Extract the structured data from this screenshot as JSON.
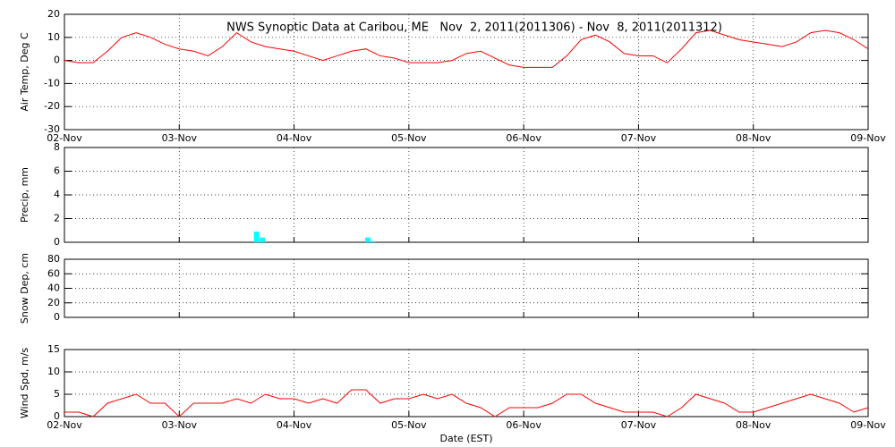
{
  "chart_data": [
    {
      "type": "line",
      "title": "NWS Synoptic Data at Caribou, ME   Nov  2, 2011(2011306) - Nov  8, 2011(2011312)",
      "ylabel": "Air Temp, Deg C",
      "x": [
        0,
        0.125,
        0.25,
        0.375,
        0.5,
        0.625,
        0.75,
        0.875,
        1,
        1.125,
        1.25,
        1.375,
        1.5,
        1.625,
        1.75,
        1.875,
        2,
        2.125,
        2.25,
        2.375,
        2.5,
        2.625,
        2.75,
        2.875,
        3,
        3.125,
        3.25,
        3.375,
        3.5,
        3.625,
        3.75,
        3.875,
        4,
        4.125,
        4.25,
        4.375,
        4.5,
        4.625,
        4.75,
        4.875,
        5,
        5.125,
        5.25,
        5.375,
        5.5,
        5.625,
        5.75,
        5.875,
        6,
        6.125,
        6.25,
        6.375,
        6.5,
        6.625,
        6.75,
        6.875,
        7
      ],
      "series": [
        {
          "color": "#ff0000",
          "values": [
            0,
            -1,
            -1,
            4,
            10,
            12,
            10,
            7,
            5,
            4,
            2,
            6,
            12,
            8,
            6,
            5,
            4,
            2,
            0,
            2,
            4,
            5,
            2,
            1,
            -1,
            -1,
            -1,
            0,
            3,
            4,
            1,
            -2,
            -3,
            -3,
            -3,
            2,
            9,
            11,
            8,
            3,
            2,
            2,
            -1,
            5,
            12,
            13,
            11,
            9,
            8,
            7,
            6,
            8,
            12,
            13,
            12,
            9,
            5
          ]
        }
      ],
      "xlim": [
        0,
        7
      ],
      "xticks": [
        {
          "value": 0,
          "label": "02-Nov"
        },
        {
          "value": 1,
          "label": "03-Nov"
        },
        {
          "value": 2,
          "label": "04-Nov"
        },
        {
          "value": 3,
          "label": "05-Nov"
        },
        {
          "value": 4,
          "label": "06-Nov"
        },
        {
          "value": 5,
          "label": "07-Nov"
        },
        {
          "value": 6,
          "label": "08-Nov"
        },
        {
          "value": 7,
          "label": "09-Nov"
        }
      ],
      "ylim": [
        -30,
        20
      ],
      "yticks": [
        -30,
        -20,
        -10,
        0,
        10,
        20
      ],
      "grid": true
    },
    {
      "type": "bar",
      "ylabel": "Precip, mm",
      "x": [
        1.65,
        1.7,
        2.62,
        2.66
      ],
      "series": [
        {
          "color": "#00ffff",
          "values": [
            0.9,
            0.4,
            0.4,
            0.1
          ]
        }
      ],
      "xlim": [
        0,
        7
      ],
      "xticks": [
        0,
        1,
        2,
        3,
        4,
        5,
        6,
        7
      ],
      "ylim": [
        0,
        8
      ],
      "yticks": [
        0,
        2,
        4,
        6,
        8
      ],
      "grid": true
    },
    {
      "type": "line",
      "ylabel": "Snow Dep, cm",
      "x": [],
      "series": [
        {
          "color": "#ff0000",
          "values": []
        }
      ],
      "xlim": [
        0,
        7
      ],
      "xticks": [
        0,
        1,
        2,
        3,
        4,
        5,
        6,
        7
      ],
      "ylim": [
        0,
        80
      ],
      "yticks": [
        0,
        20,
        40,
        60,
        80
      ],
      "grid": true
    },
    {
      "type": "line",
      "ylabel": "Wind Spd, m/s",
      "xlabel": "Date (EST)",
      "x": [
        0,
        0.125,
        0.25,
        0.375,
        0.5,
        0.625,
        0.75,
        0.875,
        1,
        1.125,
        1.25,
        1.375,
        1.5,
        1.625,
        1.75,
        1.875,
        2,
        2.125,
        2.25,
        2.375,
        2.5,
        2.625,
        2.75,
        2.875,
        3,
        3.125,
        3.25,
        3.375,
        3.5,
        3.625,
        3.75,
        3.875,
        4,
        4.125,
        4.25,
        4.375,
        4.5,
        4.625,
        4.75,
        4.875,
        5,
        5.125,
        5.25,
        5.375,
        5.5,
        5.625,
        5.75,
        5.875,
        6,
        6.125,
        6.25,
        6.375,
        6.5,
        6.625,
        6.75,
        6.875,
        7
      ],
      "series": [
        {
          "color": "#ff0000",
          "values": [
            1,
            1,
            0,
            3,
            4,
            5,
            3,
            3,
            0,
            3,
            3,
            3,
            4,
            3,
            5,
            4,
            4,
            3,
            4,
            3,
            6,
            6,
            3,
            4,
            4,
            5,
            4,
            5,
            3,
            2,
            0,
            2,
            2,
            2,
            3,
            5,
            5,
            3,
            2,
            1,
            1,
            1,
            0,
            2,
            5,
            4,
            3,
            1,
            1,
            2,
            3,
            4,
            5,
            4,
            3,
            1,
            2
          ]
        }
      ],
      "xlim": [
        0,
        7
      ],
      "xticks": [
        {
          "value": 0,
          "label": "02-Nov"
        },
        {
          "value": 1,
          "label": "03-Nov"
        },
        {
          "value": 2,
          "label": "04-Nov"
        },
        {
          "value": 3,
          "label": "05-Nov"
        },
        {
          "value": 4,
          "label": "06-Nov"
        },
        {
          "value": 5,
          "label": "07-Nov"
        },
        {
          "value": 6,
          "label": "08-Nov"
        },
        {
          "value": 7,
          "label": "09-Nov"
        }
      ],
      "ylim": [
        0,
        15
      ],
      "yticks": [
        0,
        5,
        10,
        15
      ],
      "grid": true
    }
  ]
}
